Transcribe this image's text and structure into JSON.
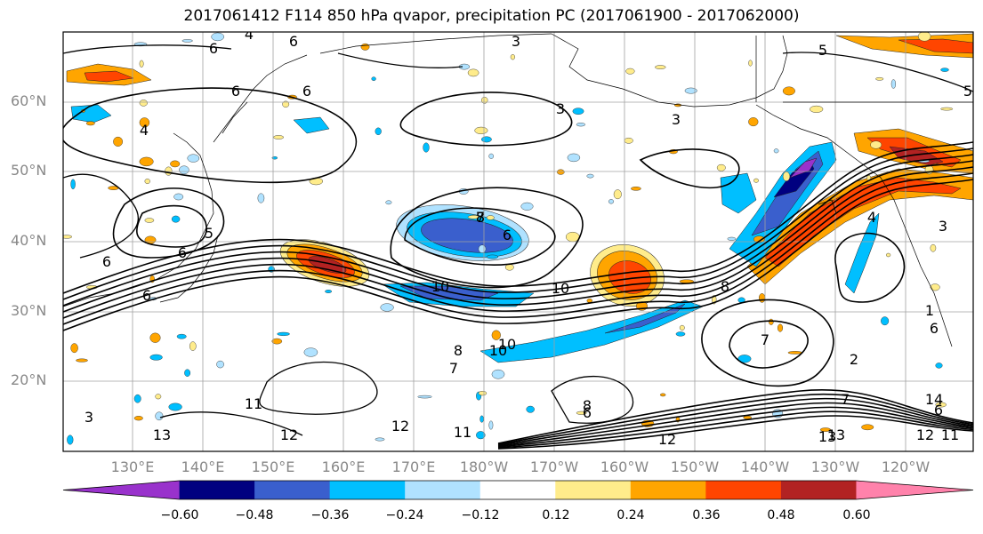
{
  "title": "2017061412 F114 850 hPa qvapor, precipitation PC (2017061900 - 2017062000)",
  "lat_labels": [
    "60°N",
    "50°N",
    "40°N",
    "30°N",
    "20°N"
  ],
  "lon_labels": [
    "130°E",
    "140°E",
    "150°E",
    "160°E",
    "170°E",
    "180°W",
    "170°W",
    "160°W",
    "150°W",
    "140°W",
    "130°W",
    "120°W"
  ],
  "colorbar": {
    "colors": [
      "#9932CC",
      "#000080",
      "#3A5FCD",
      "#00BFFF",
      "#B0E2FF",
      "#FFFFFF",
      "#FFEC8B",
      "#FFA500",
      "#FF4500",
      "#B22222",
      "#FF82AB"
    ],
    "tick_labels": [
      "−0.60",
      "−0.48",
      "−0.36",
      "−0.24",
      "−0.12",
      "0.12",
      "0.24",
      "0.36",
      "0.48",
      "0.60"
    ]
  },
  "contour_labels": [
    "4",
    "6",
    "6",
    "5",
    "5",
    "3",
    "3",
    "3",
    "4",
    "6",
    "6",
    "6",
    "6",
    "6",
    "7",
    "8",
    "4",
    "1",
    "3",
    "10",
    "10",
    "5",
    "2",
    "7",
    "10",
    "8",
    "6",
    "12",
    "13",
    "11",
    "11",
    "12",
    "13",
    "6",
    "3",
    "12",
    "7",
    "8",
    "13",
    "14",
    "11",
    "12",
    "7",
    "8",
    "10",
    "6",
    "6"
  ]
}
